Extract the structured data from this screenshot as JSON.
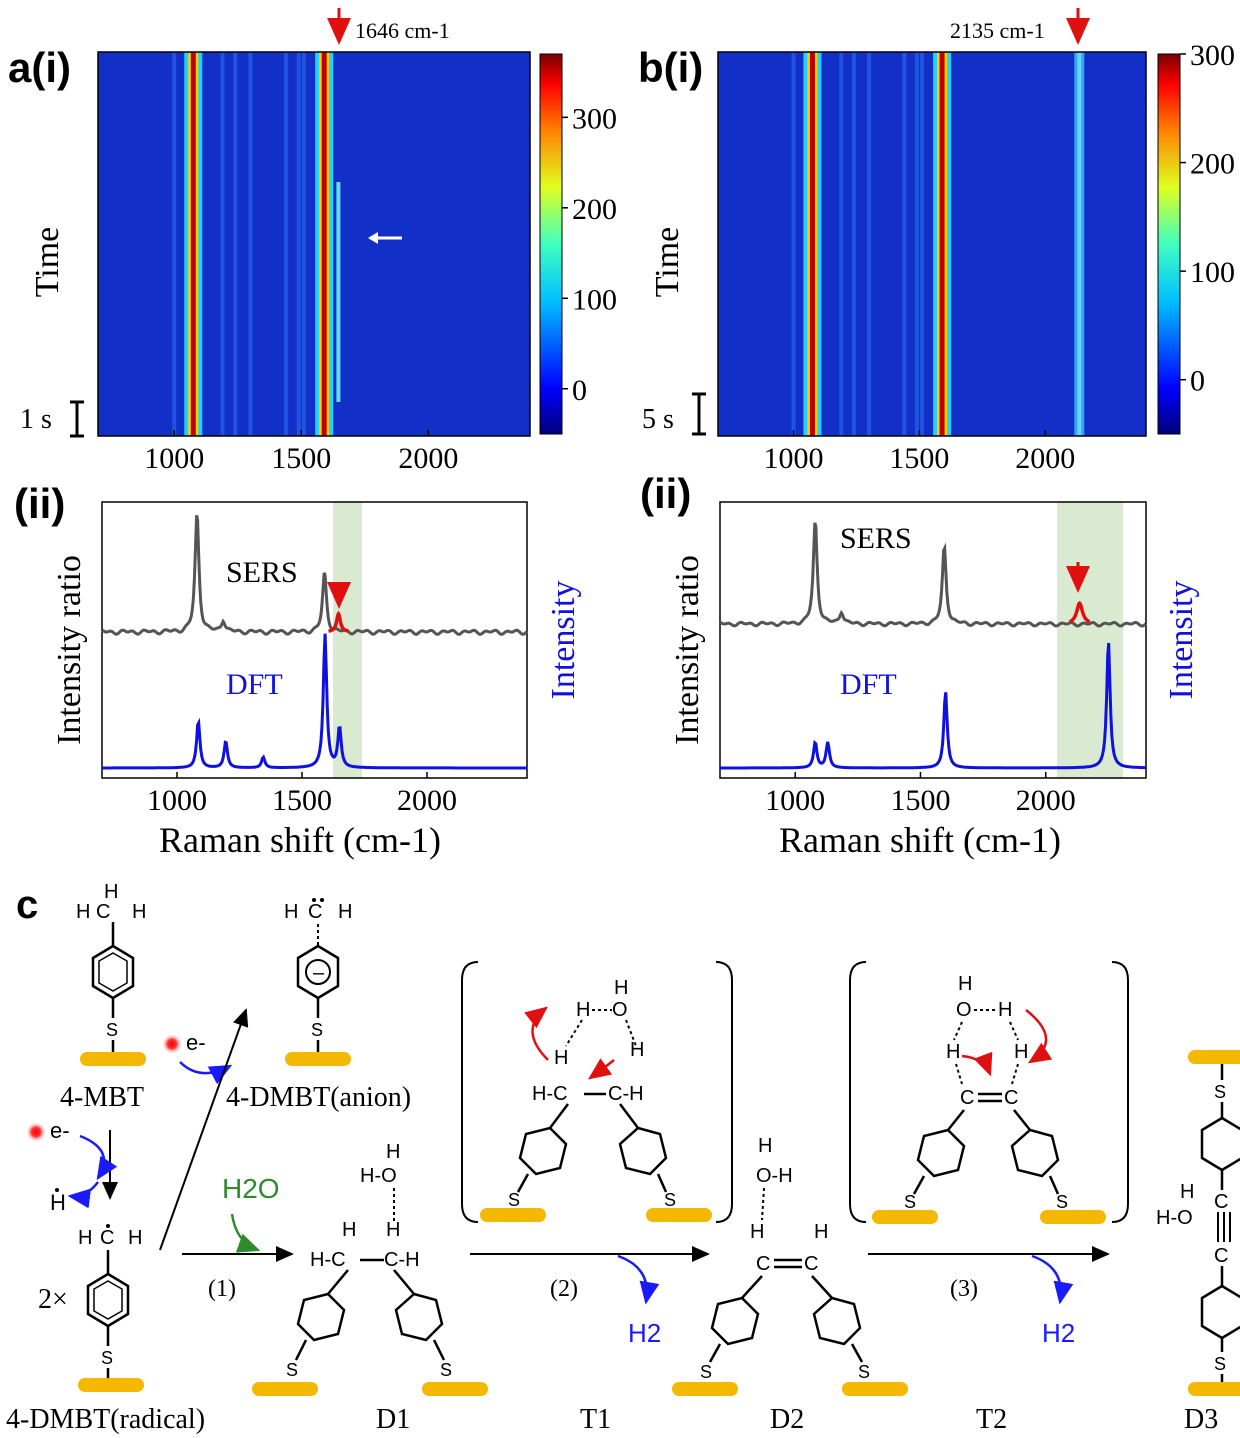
{
  "panels": {
    "a_i": {
      "label": "a(i)",
      "annotation": "1646 cm-1",
      "ylabel": "Time",
      "scalebar": "1 s",
      "colorbar_ticks": [
        "300",
        "200",
        "100",
        "0"
      ],
      "x_ticks": [
        "1000",
        "1500",
        "2000"
      ]
    },
    "b_i": {
      "label": "b(i)",
      "annotation": "2135 cm-1",
      "ylabel": "Time",
      "scalebar": "5 s",
      "colorbar_ticks": [
        "300",
        "200",
        "100",
        "0"
      ],
      "x_ticks": [
        "1000",
        "1500",
        "2000"
      ]
    },
    "a_ii": {
      "label": "(ii)",
      "ylabel_left": "Intensity ratio",
      "ylabel_right": "Intensity",
      "xlabel": "Raman shift (cm-1)",
      "sers_label": "SERS",
      "dft_label": "DFT",
      "x_ticks": [
        "1000",
        "1500",
        "2000"
      ]
    },
    "b_ii": {
      "label": "(ii)",
      "ylabel_left": "Intensity ratio",
      "ylabel_right": "Intensity",
      "xlabel": "Raman shift (cm-1)",
      "sers_label": "SERS",
      "dft_label": "DFT",
      "x_ticks": [
        "1000",
        "1500",
        "2000"
      ]
    },
    "c": {
      "label": "c",
      "species": [
        "4-MBT",
        "4-DMBT(anion)",
        "4-DMBT(radical)",
        "D1",
        "T1",
        "D2",
        "T2",
        "D3"
      ],
      "steps": [
        "(1)",
        "(2)",
        "(3)"
      ],
      "reagent": "H2O",
      "product": "H2",
      "electron": "e-",
      "multiplier": "2×"
    }
  },
  "chart_data": [
    {
      "type": "heatmap",
      "panel": "a(i)",
      "x_range": [
        700,
        2400
      ],
      "colorbar_range": [
        -50,
        370
      ],
      "colorbar_ticks": [
        0,
        100,
        200,
        300
      ],
      "bright_bands_cm1": [
        1075,
        1590
      ],
      "transient_band_cm1": 1646,
      "xlabel": "",
      "ylabel": "Time"
    },
    {
      "type": "heatmap",
      "panel": "b(i)",
      "x_range": [
        700,
        2400
      ],
      "colorbar_range": [
        -50,
        300
      ],
      "colorbar_ticks": [
        0,
        100,
        200,
        300
      ],
      "bright_bands_cm1": [
        1075,
        1590
      ],
      "persistent_band_cm1": 2135,
      "xlabel": "",
      "ylabel": "Time"
    },
    {
      "type": "line",
      "panel": "a(ii)",
      "x_range": [
        700,
        2400
      ],
      "highlight_range": [
        1625,
        1745
      ],
      "series": [
        {
          "name": "SERS",
          "peaks": [
            [
              1080,
              1.0
            ],
            [
              1185,
              0.1
            ],
            [
              1590,
              0.5
            ],
            [
              1646,
              0.15
            ]
          ]
        },
        {
          "name": "DFT",
          "peaks": [
            [
              1085,
              0.35
            ],
            [
              1195,
              0.2
            ],
            [
              1345,
              0.08
            ],
            [
              1592,
              1.0
            ],
            [
              1650,
              0.3
            ]
          ]
        }
      ],
      "xlabel": "Raman shift (cm-1)"
    },
    {
      "type": "line",
      "panel": "b(ii)",
      "x_range": [
        700,
        2400
      ],
      "highlight_range": [
        2045,
        2295
      ],
      "series": [
        {
          "name": "SERS",
          "peaks": [
            [
              1080,
              1.0
            ],
            [
              1185,
              0.12
            ],
            [
              1595,
              0.75
            ],
            [
              2135,
              0.2
            ]
          ]
        },
        {
          "name": "DFT",
          "peaks": [
            [
              1080,
              0.2
            ],
            [
              1130,
              0.2
            ],
            [
              1600,
              0.6
            ],
            [
              2250,
              1.0
            ]
          ]
        }
      ],
      "xlabel": "Raman shift (cm-1)"
    }
  ]
}
